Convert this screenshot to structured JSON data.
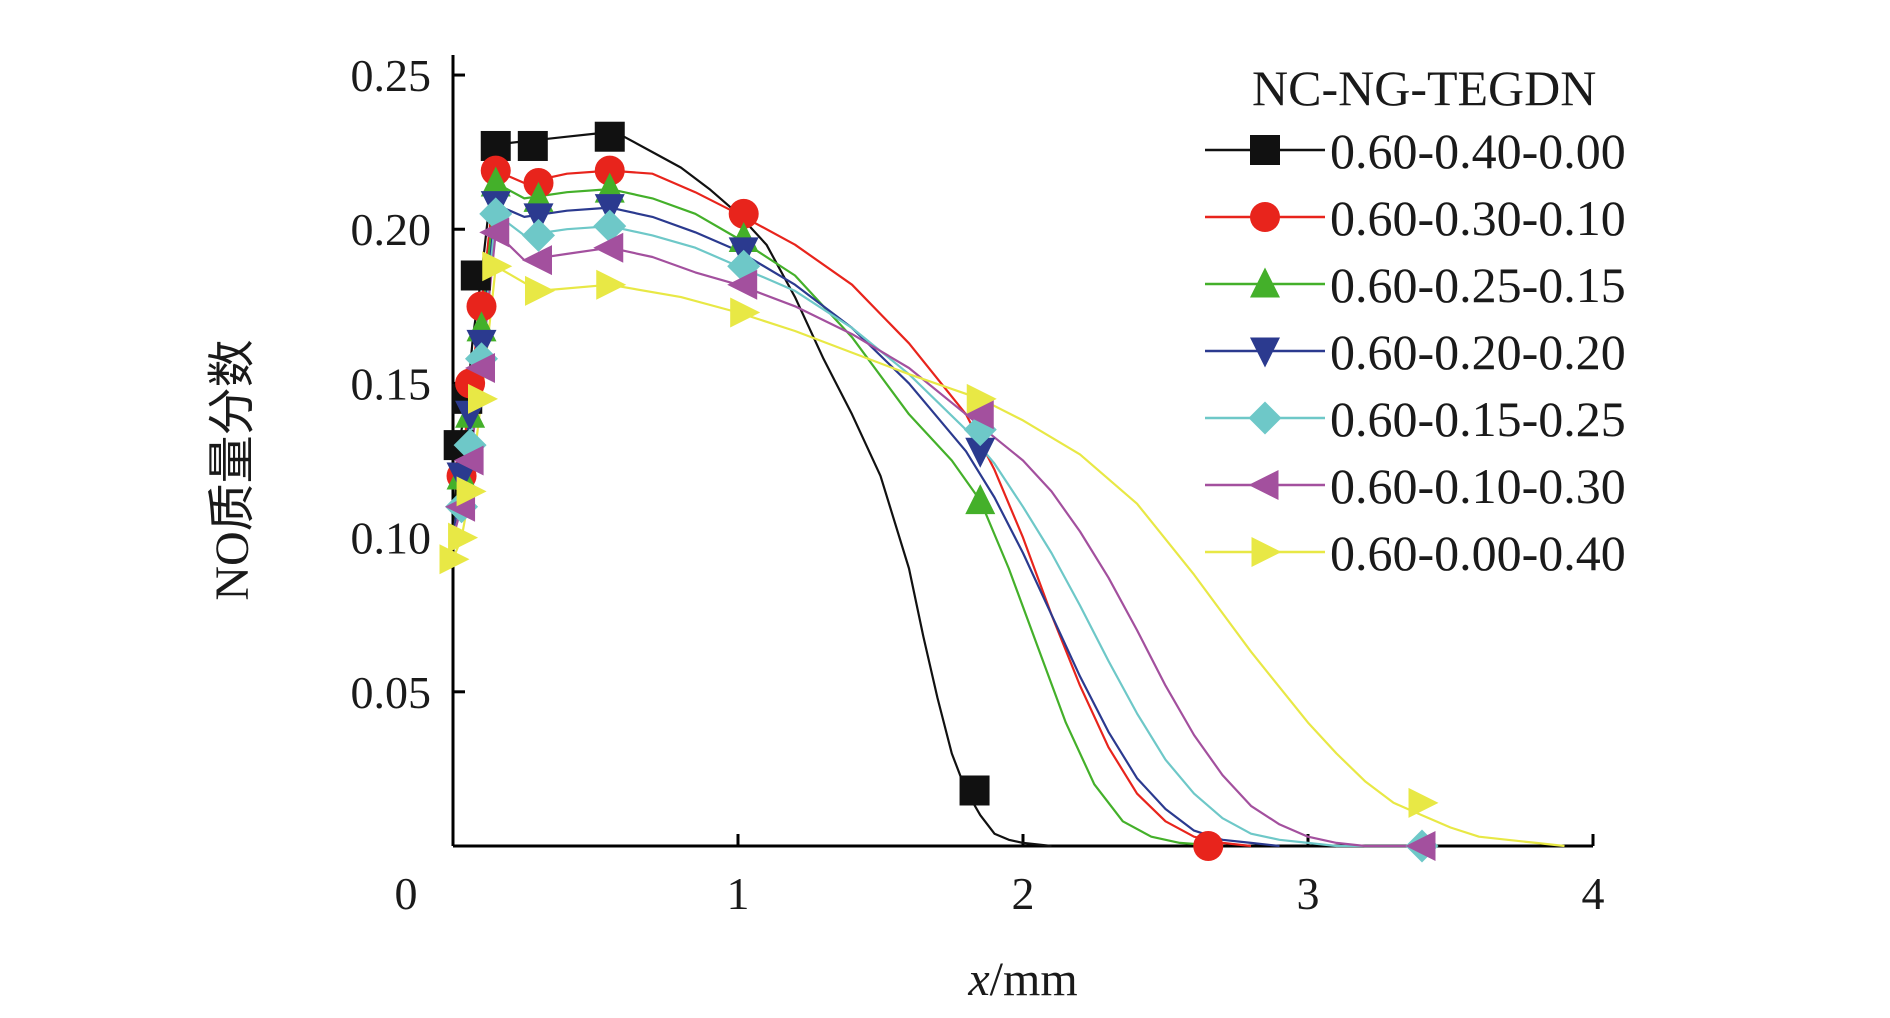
{
  "chart_data": {
    "type": "line",
    "title": "",
    "xlabel_italic": "x",
    "xlabel_unit": "/mm",
    "ylabel": "NO质量分数",
    "xlim": [
      0,
      4
    ],
    "ylim": [
      0,
      0.25
    ],
    "xticks": [
      0,
      1,
      2,
      3,
      4
    ],
    "xtick_labels": [
      "0",
      "1",
      "2",
      "3",
      "4"
    ],
    "yticks": [
      0.05,
      0.1,
      0.15,
      0.2,
      0.25
    ],
    "ytick_labels": [
      "0.05",
      "0.10",
      "0.15",
      "0.20",
      "0.25"
    ],
    "grid": false,
    "legend_title": "NC-NG-TEGDN",
    "legend_position": "top-right",
    "series": [
      {
        "name": "0.60-0.40-0.00",
        "color": "#111111",
        "marker": "square",
        "x": [
          0.0,
          0.02,
          0.05,
          0.07,
          0.1,
          0.15,
          0.2,
          0.3,
          0.4,
          0.5,
          0.6,
          0.7,
          0.8,
          0.9,
          1.0,
          1.1,
          1.2,
          1.3,
          1.4,
          1.5,
          1.6,
          1.65,
          1.7,
          1.75,
          1.8,
          1.85,
          1.9,
          1.95,
          2.0,
          2.1
        ],
        "y": [
          0.1,
          0.13,
          0.145,
          0.165,
          0.185,
          0.227,
          0.228,
          0.229,
          0.23,
          0.231,
          0.23,
          0.225,
          0.22,
          0.213,
          0.205,
          0.195,
          0.178,
          0.158,
          0.14,
          0.12,
          0.09,
          0.068,
          0.048,
          0.03,
          0.018,
          0.01,
          0.004,
          0.002,
          0.001,
          0.0
        ],
        "marker_x": [
          0.02,
          0.05,
          0.08,
          0.15,
          0.28,
          0.55,
          1.83
        ],
        "marker_y": [
          0.13,
          0.145,
          0.185,
          0.227,
          0.227,
          0.23,
          0.018
        ]
      },
      {
        "name": "0.60-0.30-0.10",
        "color": "#e8241c",
        "marker": "circle",
        "x": [
          0.0,
          0.03,
          0.06,
          0.1,
          0.15,
          0.25,
          0.4,
          0.55,
          0.7,
          0.85,
          1.0,
          1.2,
          1.4,
          1.6,
          1.8,
          1.9,
          2.0,
          2.1,
          2.2,
          2.3,
          2.4,
          2.5,
          2.6,
          2.7,
          2.8
        ],
        "y": [
          0.1,
          0.12,
          0.15,
          0.175,
          0.219,
          0.215,
          0.218,
          0.219,
          0.218,
          0.212,
          0.205,
          0.195,
          0.182,
          0.163,
          0.14,
          0.122,
          0.1,
          0.075,
          0.052,
          0.032,
          0.017,
          0.008,
          0.003,
          0.001,
          0.0
        ],
        "marker_x": [
          0.03,
          0.06,
          0.1,
          0.15,
          0.3,
          0.55,
          1.02,
          2.65
        ],
        "marker_y": [
          0.12,
          0.15,
          0.175,
          0.219,
          0.215,
          0.219,
          0.205,
          0.0
        ]
      },
      {
        "name": "0.60-0.25-0.15",
        "color": "#44b02a",
        "marker": "triangle-up",
        "x": [
          0.0,
          0.03,
          0.06,
          0.1,
          0.15,
          0.25,
          0.4,
          0.55,
          0.7,
          0.85,
          1.0,
          1.2,
          1.4,
          1.6,
          1.75,
          1.85,
          1.95,
          2.05,
          2.15,
          2.25,
          2.35,
          2.45,
          2.55,
          2.7
        ],
        "y": [
          0.1,
          0.12,
          0.14,
          0.168,
          0.215,
          0.21,
          0.212,
          0.213,
          0.21,
          0.205,
          0.197,
          0.185,
          0.165,
          0.14,
          0.125,
          0.112,
          0.09,
          0.065,
          0.04,
          0.02,
          0.008,
          0.003,
          0.001,
          0.0
        ],
        "marker_x": [
          0.03,
          0.06,
          0.1,
          0.15,
          0.3,
          0.55,
          1.02,
          1.85
        ],
        "marker_y": [
          0.12,
          0.14,
          0.168,
          0.215,
          0.21,
          0.213,
          0.197,
          0.112
        ]
      },
      {
        "name": "0.60-0.20-0.20",
        "color": "#2b3a8f",
        "marker": "triangle-down",
        "x": [
          0.0,
          0.03,
          0.06,
          0.1,
          0.15,
          0.25,
          0.4,
          0.55,
          0.7,
          0.85,
          1.0,
          1.2,
          1.4,
          1.6,
          1.8,
          1.9,
          2.0,
          2.1,
          2.2,
          2.3,
          2.4,
          2.5,
          2.6,
          2.7,
          2.8,
          2.9
        ],
        "y": [
          0.1,
          0.12,
          0.14,
          0.163,
          0.208,
          0.204,
          0.206,
          0.207,
          0.204,
          0.199,
          0.193,
          0.182,
          0.168,
          0.15,
          0.128,
          0.113,
          0.095,
          0.075,
          0.055,
          0.037,
          0.022,
          0.012,
          0.005,
          0.002,
          0.001,
          0.0
        ],
        "marker_x": [
          0.03,
          0.06,
          0.1,
          0.15,
          0.3,
          0.55,
          1.02,
          1.85
        ],
        "marker_y": [
          0.12,
          0.14,
          0.163,
          0.208,
          0.204,
          0.207,
          0.193,
          0.128
        ]
      },
      {
        "name": "0.60-0.15-0.25",
        "color": "#6ec8c8",
        "marker": "diamond",
        "x": [
          0.0,
          0.03,
          0.06,
          0.1,
          0.15,
          0.25,
          0.4,
          0.55,
          0.7,
          0.85,
          1.0,
          1.2,
          1.4,
          1.6,
          1.8,
          1.9,
          2.0,
          2.1,
          2.2,
          2.3,
          2.4,
          2.5,
          2.6,
          2.7,
          2.8,
          2.9,
          3.0,
          3.1,
          3.4
        ],
        "y": [
          0.1,
          0.11,
          0.13,
          0.158,
          0.205,
          0.198,
          0.2,
          0.201,
          0.198,
          0.194,
          0.188,
          0.18,
          0.168,
          0.153,
          0.135,
          0.124,
          0.11,
          0.095,
          0.078,
          0.06,
          0.043,
          0.028,
          0.017,
          0.009,
          0.004,
          0.002,
          0.001,
          0.0,
          0.0
        ],
        "marker_x": [
          0.03,
          0.06,
          0.1,
          0.15,
          0.3,
          0.55,
          1.02,
          1.85,
          3.4
        ],
        "marker_y": [
          0.11,
          0.13,
          0.158,
          0.205,
          0.198,
          0.201,
          0.188,
          0.135,
          0.0
        ]
      },
      {
        "name": "0.60-0.10-0.30",
        "color": "#a3509e",
        "marker": "triangle-left",
        "x": [
          0.0,
          0.03,
          0.06,
          0.1,
          0.15,
          0.25,
          0.4,
          0.55,
          0.7,
          0.85,
          1.0,
          1.2,
          1.4,
          1.6,
          1.8,
          2.0,
          2.1,
          2.2,
          2.3,
          2.4,
          2.5,
          2.6,
          2.7,
          2.8,
          2.9,
          3.0,
          3.1,
          3.2,
          3.4
        ],
        "y": [
          0.1,
          0.11,
          0.125,
          0.155,
          0.199,
          0.19,
          0.192,
          0.194,
          0.191,
          0.186,
          0.182,
          0.175,
          0.166,
          0.155,
          0.14,
          0.125,
          0.115,
          0.102,
          0.087,
          0.07,
          0.052,
          0.036,
          0.023,
          0.013,
          0.007,
          0.003,
          0.001,
          0.0,
          0.0
        ],
        "marker_x": [
          0.03,
          0.06,
          0.1,
          0.15,
          0.3,
          0.55,
          1.02,
          1.85,
          3.4
        ],
        "marker_y": [
          0.11,
          0.125,
          0.155,
          0.199,
          0.19,
          0.194,
          0.182,
          0.14,
          0.0
        ]
      },
      {
        "name": "0.60-0.00-0.40",
        "color": "#e8e845",
        "marker": "triangle-right",
        "x": [
          0.0,
          0.03,
          0.06,
          0.1,
          0.15,
          0.3,
          0.55,
          0.8,
          1.0,
          1.2,
          1.4,
          1.6,
          1.85,
          2.0,
          2.2,
          2.4,
          2.6,
          2.8,
          3.0,
          3.1,
          3.2,
          3.3,
          3.4,
          3.5,
          3.6,
          3.7,
          3.8,
          3.9
        ],
        "y": [
          0.093,
          0.1,
          0.115,
          0.145,
          0.188,
          0.18,
          0.182,
          0.178,
          0.173,
          0.167,
          0.16,
          0.153,
          0.145,
          0.138,
          0.127,
          0.111,
          0.088,
          0.063,
          0.04,
          0.03,
          0.021,
          0.014,
          0.01,
          0.006,
          0.003,
          0.002,
          0.001,
          0.0
        ],
        "marker_x": [
          0.0,
          0.03,
          0.06,
          0.1,
          0.15,
          0.3,
          0.55,
          1.02,
          1.85,
          3.4
        ],
        "marker_y": [
          0.093,
          0.1,
          0.115,
          0.145,
          0.188,
          0.18,
          0.182,
          0.173,
          0.145,
          0.014
        ]
      }
    ]
  }
}
